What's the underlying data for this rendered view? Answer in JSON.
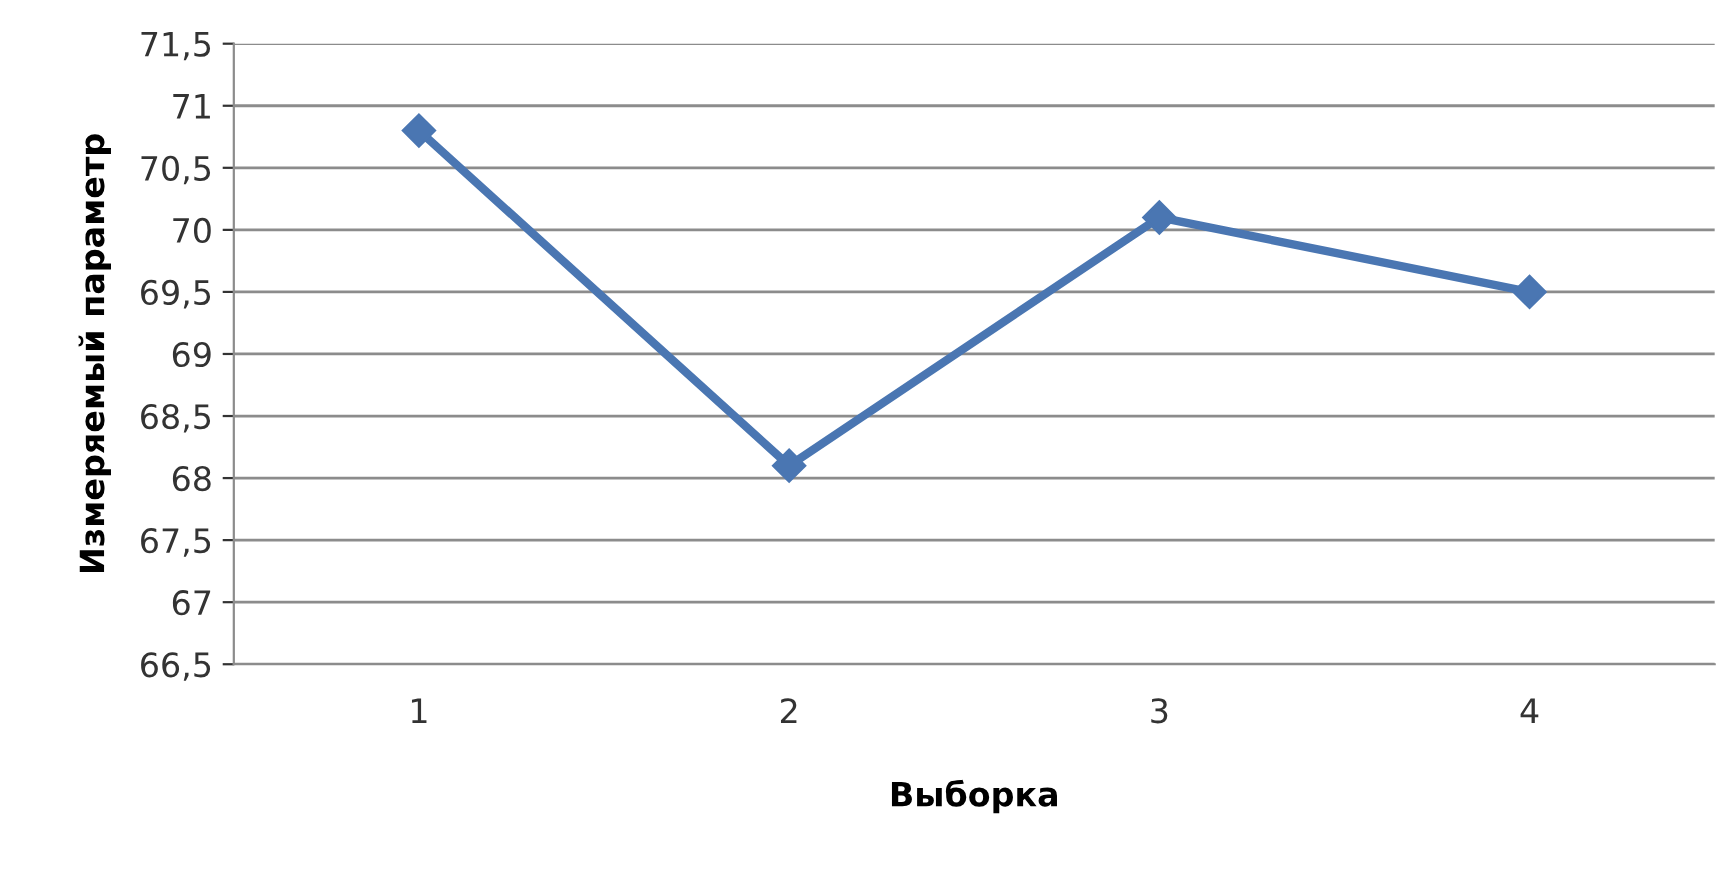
{
  "chart_data": {
    "type": "line",
    "xlabel": "Выборка",
    "ylabel": "Измеряемый параметр",
    "categories": [
      "1",
      "2",
      "3",
      "4"
    ],
    "series": [
      {
        "color": "#4a76b2",
        "values": [
          70.8,
          68.1,
          70.1,
          69.5
        ]
      }
    ],
    "ylim": [
      66.5,
      71.5
    ],
    "yticks": [
      {
        "value": 66.5,
        "label": "66,5"
      },
      67,
      {
        "value": 67.5,
        "label": "67,5"
      },
      68,
      {
        "value": 68.5,
        "label": "68,5"
      },
      69,
      {
        "value": 69.5,
        "label": "69,5"
      },
      70,
      {
        "value": 70.5,
        "label": "70,5"
      },
      71,
      {
        "value": 71.5,
        "label": "71,5"
      }
    ],
    "grid": "y",
    "marker": "diamond",
    "line_style": "solid",
    "legend": false
  }
}
